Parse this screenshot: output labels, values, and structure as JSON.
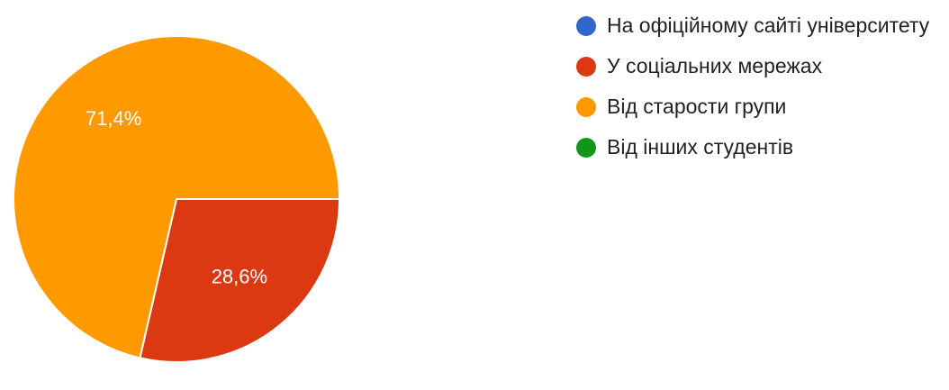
{
  "chart_data": {
    "type": "pie",
    "title": "",
    "series": [
      {
        "name": "На офіційному сайті університету",
        "value": 0,
        "color": "#3366cc"
      },
      {
        "name": "У соціальних мережах",
        "value": 28.6,
        "color": "#dc3912"
      },
      {
        "name": "Від старости групи",
        "value": 71.4,
        "color": "#ff9900"
      },
      {
        "name": "Від інших студентів",
        "value": 0,
        "color": "#109618"
      }
    ],
    "data_labels": [
      "",
      "28,6%",
      "71,4%",
      ""
    ],
    "legend_position": "right"
  }
}
